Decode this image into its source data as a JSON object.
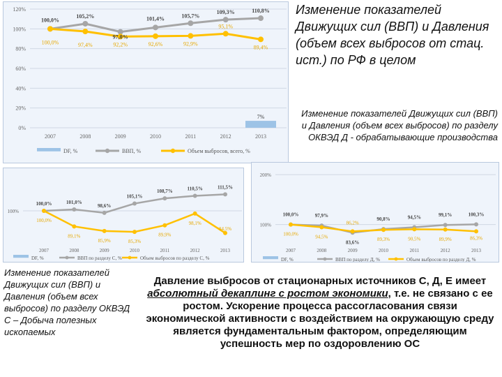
{
  "captions": {
    "rf": "Изменение показателей Движущих сил (ВВП) и Давления (объем всех выбросов от стац. ист.) по РФ в целом",
    "d": "Изменение показателей Движущих сил (ВВП) и Давления (объем всех выбросов) по разделу ОКВЭД Д - обрабатывающие производства",
    "c": "Изменение показателей Движущих сил (ВВП) и Давления (объем всех выбросов) по разделу ОКВЭД С – Добыча полезных ископаемых"
  },
  "main_text": {
    "part1": "Давление выбросов от стационарных источников С, Д, Е имеет ",
    "emphasis": "абсолютный декаплинг с ростом экономики",
    "part2": ", т.е. не связано с ее ростом. Ускорение процесса рассогласования связи экономической активности с воздействием на окружающую среду является фундаментальным фактором, определяющим успешность мер по оздоровлению ОС"
  },
  "colors": {
    "gdp": "#a6a6a6",
    "emissions": "#ffc000",
    "df": "#9dc3e6",
    "label_emis": "#e6a800",
    "grid": "#d0d8e4"
  },
  "chart_data": [
    {
      "type": "line",
      "categories": [
        "2007",
        "2008",
        "2009",
        "2010",
        "2011",
        "2012",
        "2013"
      ],
      "ylim": [
        0,
        120
      ],
      "yticks": [
        "0%",
        "20%",
        "40%",
        "60%",
        "80%",
        "100%",
        "120%"
      ],
      "series": [
        {
          "name": "ВВП, %",
          "values": [
            100.0,
            105.2,
            97.0,
            101.4,
            105.7,
            109.3,
            110.8
          ],
          "labels": [
            "100,0%",
            "105,2%",
            "97,0%",
            "101,4%",
            "105,7%",
            "109,3%",
            "110,8%"
          ]
        },
        {
          "name": "Объем выбросов, всего, %",
          "values": [
            100.0,
            97.4,
            92.2,
            92.6,
            92.9,
            95.1,
            89.4
          ],
          "labels": [
            "100,0%",
            "97,4%",
            "92,2%",
            "92,6%",
            "92,9%",
            "95,1%",
            "89,4%"
          ]
        },
        {
          "name": "DF, %",
          "values": [
            null,
            null,
            null,
            null,
            null,
            null,
            7
          ],
          "labels": [
            "",
            "",
            "",
            "",
            "",
            "",
            "7%"
          ]
        }
      ],
      "legend": "bottom"
    },
    {
      "type": "line",
      "categories": [
        "2007",
        "2008",
        "2009",
        "2010",
        "2011",
        "2012",
        "2013"
      ],
      "yticks": [
        "100%"
      ],
      "series": [
        {
          "name": "ВВП по разделу С, %",
          "values": [
            100.0,
            101.0,
            98.6,
            105.1,
            108.7,
            110.5,
            111.5
          ],
          "labels": [
            "100,0%",
            "101,0%",
            "98,6%",
            "105,1%",
            "108,7%",
            "110,5%",
            "111,5%"
          ]
        },
        {
          "name": "Объем выбросов по разделу С, %",
          "values": [
            100.0,
            89.1,
            85.9,
            85.3,
            89.9,
            98.1,
            84.5
          ],
          "labels": [
            "100,0%",
            "89,1%",
            "85,9%",
            "85,3%",
            "89,9%",
            "98,1%",
            "84,5%"
          ]
        },
        {
          "name": "DF, %",
          "values": [
            null,
            null,
            null,
            null,
            null,
            null,
            1
          ],
          "labels": [
            "",
            "",
            "",
            "",
            "",
            "",
            "1%"
          ]
        }
      ],
      "legend": "bottom"
    },
    {
      "type": "line",
      "categories": [
        "2007",
        "2008",
        "2009",
        "2010",
        "2011",
        "2012",
        "2013"
      ],
      "yticks": [
        "200%",
        "100%"
      ],
      "series": [
        {
          "name": "ВВП по разделу Д, %",
          "values": [
            100.0,
            97.9,
            83.6,
            90.8,
            94.5,
            99.1,
            100.3
          ],
          "labels": [
            "100,0%",
            "97,9%",
            "83,6%",
            "90,8%",
            "94,5%",
            "99,1%",
            "100,3%"
          ]
        },
        {
          "name": "Объем выбросов по разделу Д, %",
          "values": [
            100.0,
            94.5,
            86.2,
            89.3,
            90.5,
            89.9,
            86.3
          ],
          "labels": [
            "100,0%",
            "94,5%",
            "86,2%",
            "89,3%",
            "90,5%",
            "89,9%",
            "86,3%"
          ]
        },
        {
          "name": "DF, %",
          "values": [
            null,
            null,
            null,
            null,
            null,
            null,
            4
          ],
          "labels": [
            "",
            "",
            "",
            "",
            "",
            "",
            "4%"
          ]
        }
      ],
      "legend": "bottom"
    }
  ]
}
